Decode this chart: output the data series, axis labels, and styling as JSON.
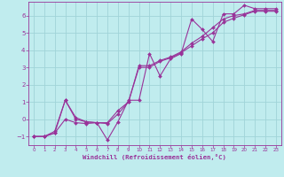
{
  "title": "",
  "xlabel": "Windchill (Refroidissement éolien,°C)",
  "xlim": [
    -0.5,
    23.5
  ],
  "ylim": [
    -1.5,
    6.8
  ],
  "yticks": [
    -1,
    0,
    1,
    2,
    3,
    4,
    5,
    6
  ],
  "xticks": [
    0,
    1,
    2,
    3,
    4,
    5,
    6,
    7,
    8,
    9,
    10,
    11,
    12,
    13,
    14,
    15,
    16,
    17,
    18,
    19,
    20,
    21,
    22,
    23
  ],
  "bg_color": "#c0ecee",
  "grid_color": "#a0d4d8",
  "line_color": "#993399",
  "spine_color": "#993399",
  "lines": [
    {
      "x": [
        0,
        1,
        2,
        3,
        4,
        5,
        6,
        7,
        8,
        9,
        10,
        11,
        12,
        13,
        14,
        15,
        16,
        17,
        18,
        19,
        20,
        21,
        22,
        23
      ],
      "y": [
        -1,
        -1,
        -0.8,
        1.1,
        0.1,
        -0.15,
        -0.2,
        -1.2,
        -0.15,
        1.1,
        1.1,
        3.8,
        2.5,
        3.5,
        3.8,
        5.8,
        5.2,
        4.5,
        6.1,
        6.1,
        6.6,
        6.4,
        6.4,
        6.4
      ]
    },
    {
      "x": [
        0,
        1,
        2,
        3,
        4,
        5,
        6,
        7,
        8,
        9,
        10,
        11,
        12,
        13,
        14,
        15,
        16,
        17,
        18,
        19,
        20,
        21,
        22,
        23
      ],
      "y": [
        -1,
        -1,
        -0.8,
        0.0,
        -0.2,
        -0.25,
        -0.2,
        -0.2,
        0.5,
        1.0,
        3.1,
        3.1,
        3.4,
        3.6,
        3.9,
        4.4,
        4.8,
        5.3,
        5.8,
        6.0,
        6.1,
        6.3,
        6.3,
        6.3
      ]
    },
    {
      "x": [
        0,
        1,
        2,
        3,
        4,
        5,
        6,
        7,
        8,
        9,
        10,
        11,
        12,
        13,
        14,
        15,
        16,
        17,
        18,
        19,
        20,
        21,
        22,
        23
      ],
      "y": [
        -1,
        -1,
        -0.7,
        1.1,
        0.0,
        -0.15,
        -0.2,
        -0.25,
        0.3,
        1.0,
        3.0,
        3.0,
        3.35,
        3.55,
        3.85,
        4.25,
        4.65,
        5.0,
        5.6,
        5.85,
        6.05,
        6.25,
        6.25,
        6.25
      ]
    }
  ]
}
